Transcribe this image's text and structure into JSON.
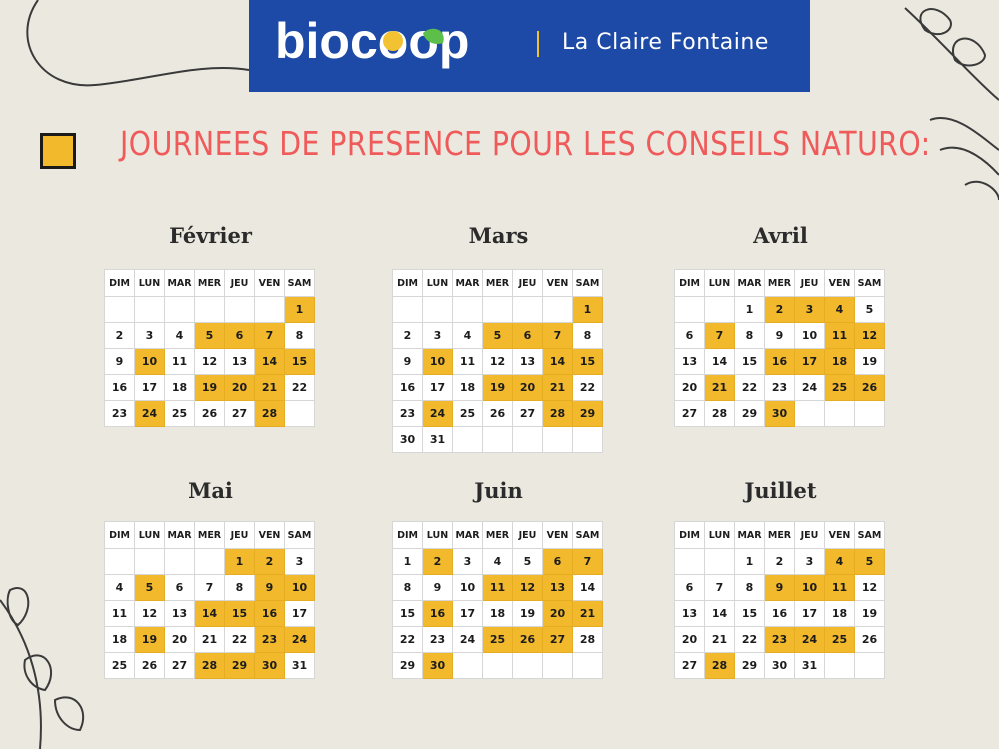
{
  "colors": {
    "highlight": "#f2b92c",
    "header": "#1d4aa6",
    "title": "#ef5a5a",
    "background": "#ebe9df"
  },
  "header": {
    "logo_text": "biocoop",
    "store_name": "La Claire Fontaine"
  },
  "page_title": "JOURNEES DE PRESENCE POUR LES CONSEILS NATURO:",
  "weekdays": [
    "DIM",
    "LUN",
    "MAR",
    "MER",
    "JEU",
    "VEN",
    "SAM"
  ],
  "months": [
    {
      "name": "Février",
      "first_weekday": 6,
      "days": 28,
      "highlighted": [
        1,
        5,
        6,
        7,
        10,
        14,
        15,
        19,
        20,
        21,
        24,
        28
      ]
    },
    {
      "name": "Mars",
      "first_weekday": 6,
      "days": 31,
      "highlighted": [
        1,
        5,
        6,
        7,
        10,
        14,
        15,
        19,
        20,
        21,
        24,
        28,
        29
      ]
    },
    {
      "name": "Avril",
      "first_weekday": 2,
      "days": 30,
      "highlighted": [
        2,
        3,
        4,
        7,
        11,
        12,
        16,
        17,
        18,
        21,
        25,
        26,
        30
      ]
    },
    {
      "name": "Mai",
      "first_weekday": 4,
      "days": 31,
      "highlighted": [
        1,
        2,
        5,
        9,
        10,
        14,
        15,
        16,
        19,
        23,
        24,
        28,
        29,
        30
      ]
    },
    {
      "name": "Juin",
      "first_weekday": 0,
      "days": 30,
      "highlighted": [
        2,
        6,
        7,
        11,
        12,
        13,
        16,
        20,
        21,
        25,
        26,
        27,
        30
      ]
    },
    {
      "name": "Juillet",
      "first_weekday": 2,
      "days": 31,
      "highlighted": [
        4,
        5,
        9,
        10,
        11,
        23,
        24,
        25,
        28
      ]
    }
  ]
}
